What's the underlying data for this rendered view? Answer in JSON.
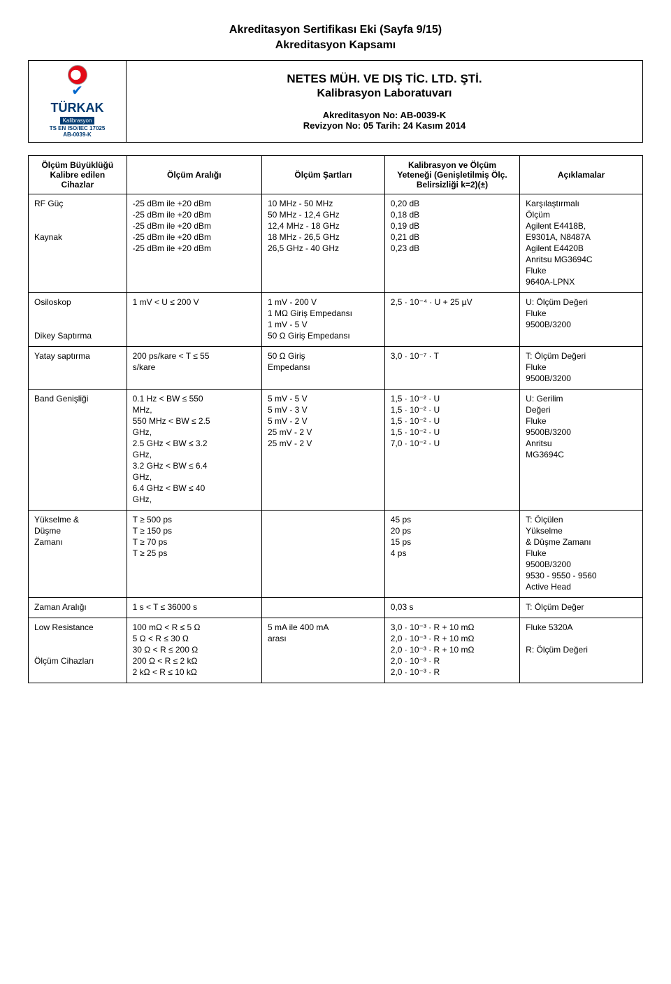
{
  "header": {
    "title1": "Akreditasyon Sertifikası Eki (Sayfa 9/15)",
    "title2": "Akreditasyon Kapsamı",
    "company": "NETES MÜH. VE DIŞ TİC. LTD. ŞTİ.",
    "lab": "Kalibrasyon Laboratuvarı",
    "akr_no": "Akreditasyon No: AB-0039-K",
    "rev_no": "Revizyon No: 05 Tarih: 24 Kasım 2014",
    "logo_brand": "TÜRKAK",
    "logo_cal": "Kalibrasyon",
    "logo_iso": "TS EN ISO/IEC 17025",
    "logo_ab": "AB-0039-K"
  },
  "columns": {
    "c1": "Ölçüm Büyüklüğü Kalibre edilen Cihazlar",
    "c2": "Ölçüm Aralığı",
    "c3": "Ölçüm Şartları",
    "c4": "Kalibrasyon ve Ölçüm Yeteneği (Genişletilmiş Ölç. Belirsizliği k=2)(±)",
    "c5": "Açıklamalar"
  },
  "rows": [
    {
      "c1": [
        "RF Güç",
        "",
        "",
        "Kaynak"
      ],
      "c2": [
        "-25 dBm ile +20 dBm",
        "-25 dBm ile +20 dBm",
        "-25 dBm ile +20 dBm",
        "-25 dBm ile +20 dBm",
        "-25 dBm ile +20 dBm"
      ],
      "c3": [
        "10 MHz - 50 MHz",
        "50 MHz - 12,4 GHz",
        "12,4 MHz - 18 GHz",
        "18 MHz - 26,5 GHz",
        "26,5 GHz - 40 GHz"
      ],
      "c4": [
        "0,20 dB",
        "0,18 dB",
        "0,19 dB",
        "0,21 dB",
        "0,23 dB"
      ],
      "c5": [
        "Karşılaştırmalı",
        "Ölçüm",
        "Agilent E4418B,",
        "E9301A, N8487A",
        "Agilent E4420B",
        "Anritsu MG3694C",
        "Fluke",
        "9640A-LPNX"
      ]
    },
    {
      "c1": [
        "Osiloskop",
        "",
        "",
        "Dikey Saptırma"
      ],
      "c2": [
        "1 mV < U ≤ 200 V"
      ],
      "c3": [
        "1 mV - 200 V",
        "1 MΩ Giriş Empedansı",
        "1 mV - 5 V",
        "50 Ω Giriş Empedansı"
      ],
      "c4": [
        "2,5 · 10⁻⁴ · U + 25 µV"
      ],
      "c5": [
        "U: Ölçüm Değeri",
        "Fluke",
        "9500B/3200"
      ]
    },
    {
      "c1": [
        "Yatay saptırma"
      ],
      "c2": [
        "200 ps/kare < T ≤ 55",
        "s/kare"
      ],
      "c3": [
        "50 Ω Giriş",
        "Empedansı"
      ],
      "c4": [
        "3,0 · 10⁻⁷ · T"
      ],
      "c5": [
        "T: Ölçüm Değeri",
        "Fluke",
        "9500B/3200"
      ]
    },
    {
      "c1": [
        "Band Genişliği"
      ],
      "c2": [
        "0.1 Hz < BW ≤ 550",
        "MHz,",
        " 550 MHz < BW ≤ 2.5",
        "GHz,",
        " 2.5 GHz < BW ≤ 3.2",
        "GHz,",
        " 3.2 GHz < BW ≤ 6.4",
        "GHz,",
        " 6.4 GHz < BW ≤ 40",
        "GHz,"
      ],
      "c3": [
        "5 mV - 5 V",
        "5 mV - 3 V",
        "5 mV - 2 V",
        "25 mV - 2 V",
        "25 mV - 2 V"
      ],
      "c4": [
        "1,5 · 10⁻² · U",
        "1,5 · 10⁻² · U",
        "1,5 · 10⁻² · U",
        "1,5 · 10⁻² · U",
        "7,0 · 10⁻² · U"
      ],
      "c5": [
        "U: Gerilim",
        "Değeri",
        "Fluke",
        "9500B/3200",
        "Anritsu",
        "MG3694C"
      ]
    },
    {
      "c1": [
        "Yükselme &",
        "Düşme",
        "Zamanı"
      ],
      "c2": [
        "T ≥ 500 ps",
        "T ≥ 150 ps",
        "T ≥ 70 ps",
        "T ≥ 25 ps"
      ],
      "c3": [
        ""
      ],
      "c4": [
        "45 ps",
        "20 ps",
        "15 ps",
        "4 ps"
      ],
      "c5": [
        "T: Ölçülen",
        "Yükselme",
        "& Düşme Zamanı",
        "Fluke",
        "9500B/3200",
        "9530 - 9550 - 9560",
        "Active Head"
      ]
    },
    {
      "c1": [
        "Zaman Aralığı"
      ],
      "c2": [
        "1 s < T ≤ 36000 s"
      ],
      "c3": [
        ""
      ],
      "c4": [
        "0,03 s"
      ],
      "c5": [
        "T: Ölçüm Değer"
      ]
    },
    {
      "c1": [
        "Low  Resistance",
        "",
        "",
        "Ölçüm Cihazları"
      ],
      "c2": [
        "100 mΩ < R ≤ 5 Ω",
        "5 Ω < R ≤ 30 Ω",
        "30 Ω < R ≤ 200 Ω",
        "200 Ω < R ≤ 2 kΩ",
        "2 kΩ < R ≤ 10 kΩ"
      ],
      "c3": [
        "5 mA ile 400 mA",
        "arası"
      ],
      "c4": [
        "3,0 · 10⁻³ · R + 10 mΩ",
        "2,0 · 10⁻³ · R + 10 mΩ",
        "2,0 · 10⁻³ · R + 10 mΩ",
        "2,0 · 10⁻³ · R",
        "2,0 · 10⁻³ · R"
      ],
      "c5": [
        "Fluke 5320A",
        "",
        "R: Ölçüm Değeri"
      ]
    }
  ]
}
